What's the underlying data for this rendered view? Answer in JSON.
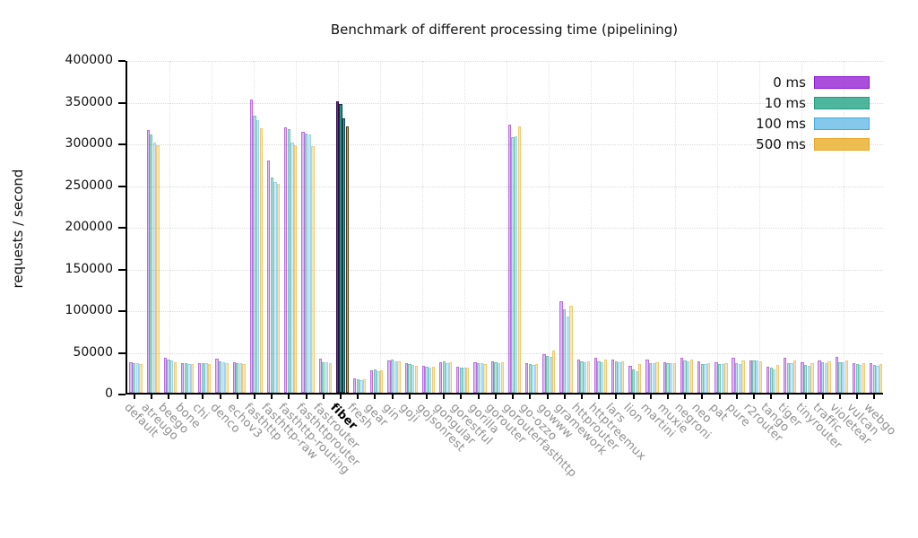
{
  "chart_data": {
    "type": "bar",
    "title": "Benchmark of different processing time (pipelining)",
    "xlabel": "",
    "ylabel": "requests / second",
    "ylim": [
      0,
      400000
    ],
    "y_tick_step": 50000,
    "grid": true,
    "legend_position": "top-right",
    "highlight_category": "fiber",
    "categories": [
      "default",
      "atreugo",
      "beego",
      "bone",
      "chi",
      "denco",
      "echov3",
      "fasthttp",
      "fasthttp-raw",
      "fasthttp-routing",
      "fasthttprouter",
      "fastrouter",
      "fiber",
      "fresh",
      "gear",
      "gin",
      "goji",
      "gojsonrest",
      "gongular",
      "gorestful",
      "gorilla",
      "gorouter",
      "gorouterfasthttp",
      "go-ozzo",
      "gowww",
      "gramework",
      "httprouter",
      "httptreemux",
      "lars",
      "lion",
      "martini",
      "muxie",
      "negroni",
      "neo",
      "pat",
      "pure",
      "r2router",
      "tango",
      "tiger",
      "tinyrouter",
      "traffic",
      "violetear",
      "vulcan",
      "webgo"
    ],
    "series": [
      {
        "name": "0 ms",
        "color": "#9a30d5",
        "solid_color": "#8b14d4",
        "values": [
          37000,
          315000,
          41500,
          36000,
          36000,
          40500,
          37000,
          352000,
          278000,
          318000,
          313000,
          40500,
          349000,
          17500,
          27000,
          39000,
          35000,
          32000,
          37000,
          31500,
          37000,
          37500,
          322000,
          35500,
          46000,
          110000,
          40000,
          41500,
          40000,
          32000,
          39500,
          37000,
          42000,
          37500,
          37000,
          41500,
          39000,
          31000,
          41500,
          37000,
          39000,
          43000,
          36000,
          36000
        ]
      },
      {
        "name": "10 ms",
        "color": "#2fa98b",
        "solid_color": "#1f9c80",
        "values": [
          36000,
          310000,
          39500,
          35500,
          35500,
          38000,
          36000,
          332000,
          258000,
          316000,
          311000,
          37000,
          346000,
          16000,
          28000,
          40000,
          34000,
          31500,
          38000,
          30500,
          35500,
          36500,
          307000,
          34000,
          44000,
          100000,
          37500,
          37500,
          37500,
          27500,
          36000,
          35500,
          38500,
          34500,
          34500,
          35000,
          39000,
          30000,
          35500,
          33000,
          36500,
          37000,
          34000,
          33000
        ]
      },
      {
        "name": "100 ms",
        "color": "#6fbfe8",
        "solid_color": "#45abdf",
        "values": [
          35500,
          300000,
          38500,
          34500,
          35000,
          37000,
          35000,
          327000,
          253000,
          300000,
          310000,
          36500,
          329000,
          15000,
          26000,
          38000,
          33000,
          30500,
          36000,
          30000,
          35000,
          35500,
          308000,
          33500,
          43000,
          91000,
          37000,
          37000,
          37000,
          26000,
          35500,
          35000,
          38000,
          34000,
          34000,
          34500,
          38500,
          28500,
          35000,
          32500,
          36000,
          36500,
          33500,
          32500
        ]
      },
      {
        "name": "500 ms",
        "color": "#eab231",
        "solid_color": "#e8a62a",
        "values": [
          34500,
          297000,
          37000,
          34000,
          34000,
          36000,
          34500,
          317000,
          251000,
          297000,
          296000,
          36000,
          319000,
          16500,
          26500,
          37500,
          32500,
          31000,
          37000,
          30500,
          34000,
          37000,
          319000,
          34500,
          50500,
          104000,
          38000,
          39500,
          38000,
          34000,
          37000,
          36000,
          40000,
          36000,
          35500,
          39000,
          38000,
          33500,
          38500,
          35500,
          38000,
          38500,
          35000,
          34000
        ]
      }
    ]
  },
  "legend": {
    "items": [
      "0 ms",
      "10 ms",
      "100 ms",
      "500 ms"
    ]
  }
}
